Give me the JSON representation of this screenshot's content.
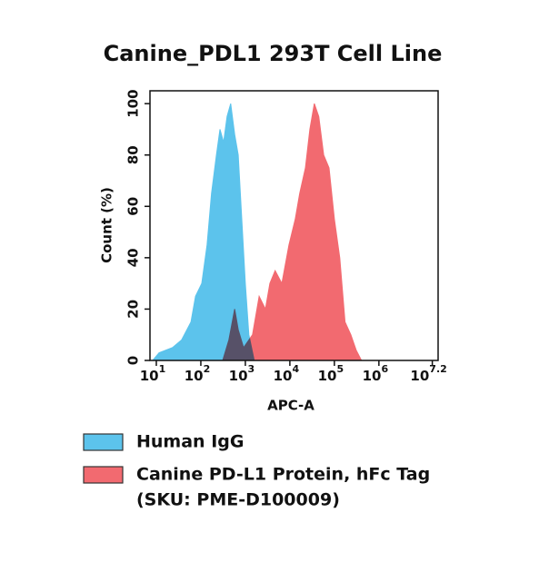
{
  "chart_data": {
    "type": "area",
    "title": "Canine_PDL1 293T Cell Line",
    "xlabel": "APC-A",
    "ylabel": "Count  (%)",
    "xscale": "log",
    "xlim": [
      7.2,
      21400000
    ],
    "ylim": [
      0,
      105
    ],
    "xticks": [
      {
        "value": 10,
        "label": "10",
        "exponent": "1"
      },
      {
        "value": 100,
        "label": "10",
        "exponent": "2"
      },
      {
        "value": 1000,
        "label": "10",
        "exponent": "3"
      },
      {
        "value": 10000,
        "label": "10",
        "exponent": "4"
      },
      {
        "value": 100000,
        "label": "10",
        "exponent": "5"
      },
      {
        "value": 1000000,
        "label": "10",
        "exponent": "6"
      },
      {
        "value": 15848932,
        "label": "10",
        "exponent": "7.2"
      }
    ],
    "yticks": [
      0,
      20,
      40,
      60,
      80,
      100
    ],
    "series": [
      {
        "name": "Canine PD-L1 Protein, hFc Tag",
        "note": "(SKU: PME-D100009)",
        "color": "#f26a70",
        "x": [
          309,
          427,
          575,
          692,
          912,
          1445,
          2042,
          2818,
          3548,
          4677,
          6607,
          9550,
          13183,
          16596,
          22387,
          28184,
          35481,
          44668,
          57544,
          75858,
          100000,
          131826,
          173780,
          234423,
          309030,
          407380
        ],
        "values": [
          0,
          8,
          20,
          12,
          5,
          10,
          25,
          20,
          30,
          35,
          30,
          45,
          55,
          65,
          75,
          90,
          100,
          95,
          80,
          75,
          55,
          40,
          15,
          10,
          4,
          0
        ]
      },
      {
        "name": "Human IgG",
        "color": "#5cc3ec",
        "x": [
          8.3,
          11.5,
          23,
          37,
          60,
          76,
          105,
          138,
          174,
          224,
          269,
          324,
          389,
          468,
          575,
          692,
          832,
          1000,
          1200,
          1585
        ],
        "values": [
          0,
          3,
          5,
          8,
          15,
          25,
          30,
          45,
          65,
          80,
          90,
          85,
          95,
          100,
          88,
          80,
          55,
          30,
          10,
          0
        ]
      }
    ]
  }
}
